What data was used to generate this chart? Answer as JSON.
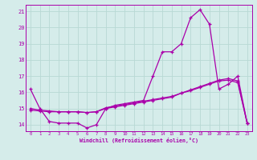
{
  "xlabel": "Windchill (Refroidissement éolien,°C)",
  "xlim": [
    -0.5,
    23.5
  ],
  "ylim": [
    13.6,
    21.4
  ],
  "yticks": [
    14,
    15,
    16,
    17,
    18,
    19,
    20,
    21
  ],
  "xticks": [
    0,
    1,
    2,
    3,
    4,
    5,
    6,
    7,
    8,
    9,
    10,
    11,
    12,
    13,
    14,
    15,
    16,
    17,
    18,
    19,
    20,
    21,
    22,
    23
  ],
  "bg_color": "#d5ecea",
  "line_color": "#aa00aa",
  "grid_color": "#b8d8d4",
  "line1_x": [
    0,
    1,
    2,
    3,
    4,
    5,
    6,
    7,
    8,
    9,
    10,
    11,
    12,
    13,
    14,
    15,
    16,
    17,
    18,
    19,
    20,
    21,
    22,
    23
  ],
  "line1_y": [
    16.2,
    15.0,
    14.2,
    14.1,
    14.1,
    14.1,
    13.8,
    14.0,
    15.0,
    15.2,
    15.3,
    15.4,
    15.5,
    17.0,
    18.5,
    18.5,
    19.0,
    20.6,
    21.1,
    20.2,
    16.2,
    16.5,
    17.0,
    14.1
  ],
  "line2_x": [
    0,
    1,
    2,
    3,
    4,
    5,
    6,
    7,
    8,
    9,
    10,
    11,
    12,
    13,
    14,
    15,
    16,
    17,
    18,
    19,
    20,
    21,
    22,
    23
  ],
  "line2_y": [
    15.0,
    14.9,
    14.85,
    14.8,
    14.8,
    14.8,
    14.75,
    14.8,
    15.0,
    15.1,
    15.2,
    15.3,
    15.4,
    15.5,
    15.6,
    15.7,
    15.95,
    16.15,
    16.35,
    16.55,
    16.75,
    16.85,
    16.7,
    14.1
  ],
  "line3_x": [
    0,
    1,
    2,
    3,
    4,
    5,
    6,
    7,
    8,
    9,
    10,
    11,
    12,
    13,
    14,
    15,
    16,
    17,
    18,
    19,
    20,
    21,
    22,
    23
  ],
  "line3_y": [
    14.9,
    14.85,
    14.8,
    14.8,
    14.8,
    14.8,
    14.75,
    14.8,
    15.05,
    15.15,
    15.25,
    15.35,
    15.45,
    15.55,
    15.65,
    15.75,
    15.95,
    16.1,
    16.3,
    16.5,
    16.7,
    16.75,
    16.6,
    14.1
  ]
}
